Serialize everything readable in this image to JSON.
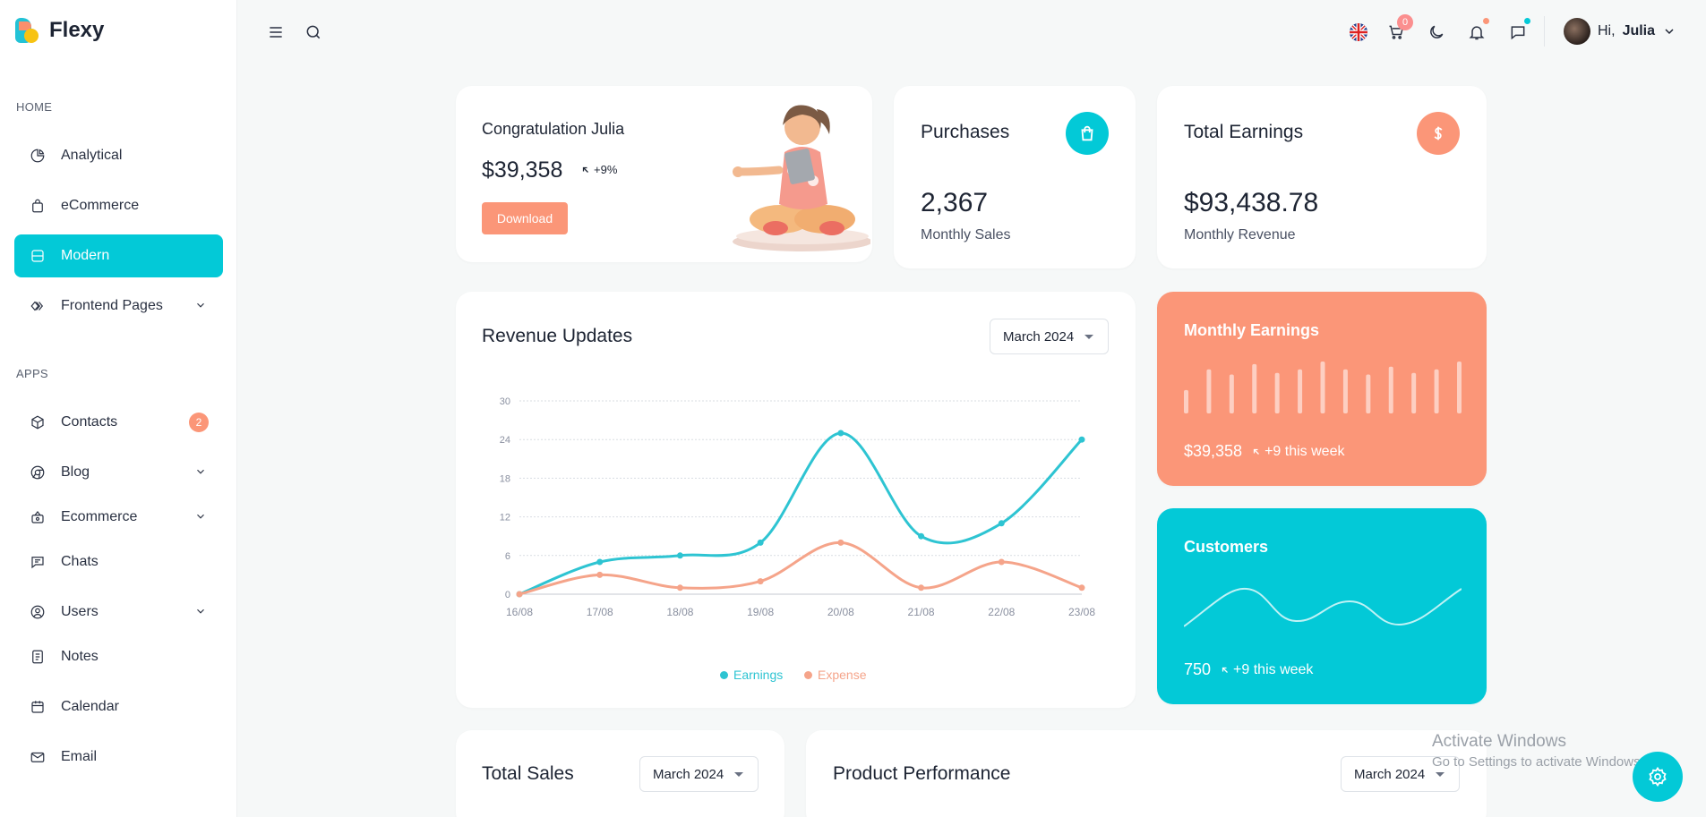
{
  "brand": {
    "name": "Flexy"
  },
  "sidebar": {
    "section_home": "HOME",
    "section_apps": "APPS",
    "home_items": [
      {
        "label": "Analytical",
        "icon": "pie-chart-icon"
      },
      {
        "label": "eCommerce",
        "icon": "shopping-bag-icon"
      },
      {
        "label": "Modern",
        "icon": "server-icon",
        "active": true
      },
      {
        "label": "Frontend Pages",
        "icon": "layers-icon",
        "has_children": true
      }
    ],
    "app_items": [
      {
        "label": "Contacts",
        "icon": "box-icon",
        "badge": "2"
      },
      {
        "label": "Blog",
        "icon": "chrome-icon",
        "has_children": true
      },
      {
        "label": "Ecommerce",
        "icon": "basket-icon",
        "has_children": true
      },
      {
        "label": "Chats",
        "icon": "message-icon"
      },
      {
        "label": "Users",
        "icon": "user-circle-icon",
        "has_children": true
      },
      {
        "label": "Notes",
        "icon": "notes-icon"
      },
      {
        "label": "Calendar",
        "icon": "calendar-icon"
      },
      {
        "label": "Email",
        "icon": "mail-icon"
      }
    ]
  },
  "topbar": {
    "cart_count": "0",
    "greeting": "Hi,",
    "user_name": "Julia"
  },
  "welcome": {
    "title": "Congratulation Julia",
    "amount": "$39,358",
    "change": "+9%",
    "button": "Download"
  },
  "purchases": {
    "title": "Purchases",
    "value": "2,367",
    "label": "Monthly Sales"
  },
  "earnings": {
    "title": "Total Earnings",
    "value": "$93,438.78",
    "label": "Monthly Revenue"
  },
  "revenue": {
    "title": "Revenue Updates",
    "period": "March 2024"
  },
  "monthly_earnings": {
    "title": "Monthly Earnings",
    "amount": "$39,358",
    "change": "+9 this week",
    "bars": [
      0.45,
      0.85,
      0.75,
      0.95,
      0.78,
      0.85,
      1.0,
      0.85,
      0.75,
      0.9,
      0.78,
      0.85,
      1.0
    ]
  },
  "customers": {
    "title": "Customers",
    "value": "750",
    "change": "+9 this week"
  },
  "total_sales": {
    "title": "Total Sales",
    "period": "March 2024"
  },
  "product_performance": {
    "title": "Product Performance",
    "period": "March 2024"
  },
  "watermark": {
    "line1": "Activate Windows",
    "line2": "Go to Settings to activate Windows."
  },
  "colors": {
    "primary": "#03c9d7",
    "secondary": "#fb9678",
    "earnings_line": "#2ec4d2",
    "expense_line": "#f5a48a"
  },
  "chart_data": {
    "type": "line",
    "categories": [
      "16/08",
      "17/08",
      "18/08",
      "19/08",
      "20/08",
      "21/08",
      "22/08",
      "23/08"
    ],
    "series": [
      {
        "name": "Earnings",
        "values": [
          0,
          5,
          6,
          8,
          25,
          9,
          11,
          24
        ]
      },
      {
        "name": "Expense",
        "values": [
          0,
          3,
          1,
          2,
          8,
          1,
          5,
          1
        ]
      }
    ],
    "yticks": [
      0,
      6,
      12,
      18,
      24,
      30
    ],
    "ylim": [
      0,
      30
    ],
    "grid": true,
    "legend": "bottom-center"
  }
}
